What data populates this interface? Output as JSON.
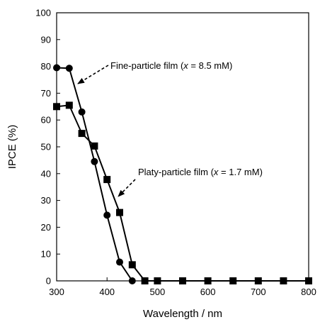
{
  "chart_data": {
    "type": "line",
    "title": "",
    "xlabel": "Wavelength / nm",
    "ylabel": "IPCE (%)",
    "xlim": [
      300,
      800
    ],
    "ylim": [
      0,
      100
    ],
    "xticks": [
      300,
      400,
      500,
      600,
      700,
      800
    ],
    "yticks": [
      0,
      10,
      20,
      30,
      40,
      50,
      60,
      70,
      80,
      90,
      100
    ],
    "grid": false,
    "legend": "none",
    "series": [
      {
        "marker": "circle",
        "color": "#000000",
        "x": [
          300,
          325,
          350,
          375,
          400,
          425,
          450
        ],
        "y": [
          79.5,
          79.3,
          63,
          44.5,
          24.5,
          7,
          0
        ]
      },
      {
        "marker": "square",
        "color": "#000000",
        "x": [
          300,
          325,
          350,
          375,
          400,
          425,
          450,
          475,
          500,
          550,
          600,
          650,
          700,
          750,
          800
        ],
        "y": [
          65,
          65.5,
          55,
          50.3,
          37.8,
          25.5,
          6,
          0,
          0,
          0,
          0,
          0,
          0,
          0,
          0
        ]
      }
    ],
    "annotations": [
      {
        "text_prefix": "Fine-particle film (",
        "text_var": "x",
        "text_suffix": " = 8.5 mM)",
        "target": {
          "x": 325,
          "y": 69
        },
        "series_index": 0
      },
      {
        "text_prefix": "Platy-particle film (",
        "text_var": "x",
        "text_suffix": " = 1.7 mM)",
        "target": {
          "x": 433,
          "y": 31
        },
        "series_index": 1
      }
    ]
  }
}
